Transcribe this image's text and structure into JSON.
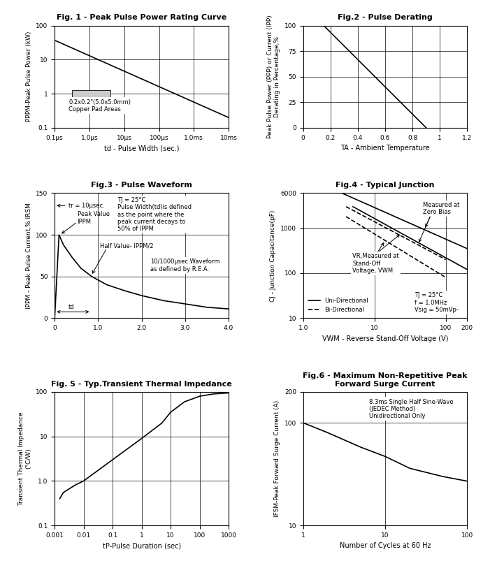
{
  "chart_data": [
    {
      "type": "line",
      "title": "Fig. 1 - Peak Pulse Power Rating Curve",
      "x_label": "td - Pulse Width (sec.)",
      "y_label": "PPPM-Peak Pulse Power (kW)",
      "log": true,
      "grid": true,
      "xlim": [
        1e-07,
        0.01
      ],
      "ylim": [
        0.1,
        100
      ],
      "xticks": [
        {
          "value": 1e-07,
          "label": "0.1µs"
        },
        {
          "value": 1e-06,
          "label": "1.0µs"
        },
        {
          "value": 1e-05,
          "label": "10µs"
        },
        {
          "value": 0.0001,
          "label": "100µs"
        },
        {
          "value": 0.001,
          "label": "1.0ms"
        },
        {
          "value": 0.01,
          "label": "10ms"
        }
      ],
      "yticks": [
        0.1,
        1,
        10,
        100
      ],
      "series": [
        {
          "x": [
            1e-07,
            0.01
          ],
          "values": [
            37,
            0.2
          ],
          "color": "#000000",
          "line_style": "solid"
        }
      ],
      "annotations": [
        {
          "text": "0.2x0.2\"(5.0x5.0mm)\nCopper Pad Areas"
        }
      ]
    },
    {
      "type": "line",
      "title": "Fig.2 - Pulse Derating",
      "x_label": "TA - Ambient Temperature",
      "y_label": "Peak Pulse Power (PPP) or Current (IPP)\nDerating in Percentage,%",
      "grid": true,
      "xlim": [
        0,
        1.2
      ],
      "ylim": [
        0,
        100
      ],
      "xticks": [
        0,
        0.2,
        0.4,
        0.6,
        0.8,
        1,
        1.2
      ],
      "yticks": [
        0,
        25,
        50,
        75,
        100
      ],
      "series": [
        {
          "x": [
            0.15,
            0.9
          ],
          "values": [
            100,
            0
          ],
          "color": "#000000",
          "line_style": "solid"
        }
      ],
      "annotations": []
    },
    {
      "type": "line",
      "title": "Fig.3 - Pulse Waveform",
      "y_label": "IPPM - Peak Pulse Current,% IRSM",
      "grid": true,
      "xlim": [
        0,
        4.0
      ],
      "ylim": [
        0,
        150
      ],
      "xticks": [
        0,
        1.0,
        2.0,
        3.0,
        4.0
      ],
      "yticks": [
        0,
        50,
        100,
        150
      ],
      "series": [
        {
          "x": [
            0,
            0.1,
            0.2,
            0.4,
            0.6,
            0.85,
            1.2,
            1.6,
            2.0,
            2.5,
            3.0,
            3.5,
            4.0
          ],
          "values": [
            0,
            100,
            88,
            73,
            60,
            50,
            40,
            33,
            27,
            21,
            17,
            13,
            11
          ],
          "color": "#000000",
          "line_style": "solid"
        }
      ],
      "annotations": [
        {
          "text": "tr = 10µsec."
        },
        {
          "text": "Peak Value\nIPPM"
        },
        {
          "text": "Half Value- IPPM/2"
        },
        {
          "text": "TJ = 25°C\nPulse Width(td)is defined\nas the point where the\npeak current decays to\n50% of IPPM"
        },
        {
          "text": "10/1000µsec.Waveform\nas defined by R.E.A."
        },
        {
          "text": "td"
        }
      ]
    },
    {
      "type": "line",
      "title": "Fig.4 - Typical Junction",
      "x_label": "VWM - Reverse Stand-Off Voltage (V)",
      "y_label": "CJ - Junction Capacitance(pF)",
      "log": true,
      "grid": true,
      "legend": "lower left",
      "xlim": [
        1,
        200
      ],
      "ylim": [
        10,
        6000
      ],
      "xticks": [
        {
          "value": 1,
          "label": "1.0"
        },
        10,
        100,
        200
      ],
      "yticks": [
        10,
        100,
        1000,
        6000
      ],
      "series": [
        {
          "name": "Uni-Directional",
          "x": [
            3.5,
            200
          ],
          "values": [
            6000,
            350
          ],
          "color": "#000000",
          "line_style": "solid"
        },
        {
          "name": "Uni-Directional",
          "x": [
            5,
            200
          ],
          "values": [
            3000,
            120
          ],
          "color": "#000000",
          "line_style": "solid"
        },
        {
          "name": "Bi-Directional",
          "x": [
            4,
            100
          ],
          "values": [
            3000,
            200
          ],
          "color": "#000000",
          "line_style": "dashed"
        },
        {
          "name": "Bi-Directional",
          "x": [
            4,
            100
          ],
          "values": [
            1800,
            80
          ],
          "color": "#000000",
          "line_style": "dashed"
        }
      ],
      "annotations": [
        {
          "text": "Measured at\nZero Bias"
        },
        {
          "text": "VR,Measured at\nStand-Off\nVoltage, VWM"
        },
        {
          "text": "TJ = 25°C\nf = 1.0MHz\nVsig = 50mVp-"
        }
      ]
    },
    {
      "type": "line",
      "title": "Fig. 5 - Typ.Transient Thermal Impedance",
      "x_label": "tP-Pulse Duration (sec)",
      "y_label": "Transient Thermal Impedance\n(°C/W)",
      "log": true,
      "grid": true,
      "xlim": [
        0.001,
        1000
      ],
      "ylim": [
        0.1,
        100
      ],
      "xticks": [
        0.001,
        0.01,
        0.1,
        1,
        10,
        100,
        1000
      ],
      "yticks": [
        0.1,
        1.0,
        10,
        100
      ],
      "series": [
        {
          "x": [
            0.0015,
            0.002,
            0.005,
            0.01,
            0.1,
            1,
            5,
            10,
            30,
            100,
            300,
            1000
          ],
          "values": [
            0.4,
            0.55,
            0.8,
            1.0,
            3,
            9,
            20,
            35,
            60,
            80,
            90,
            95
          ],
          "color": "#000000",
          "line_style": "solid"
        }
      ],
      "annotations": []
    },
    {
      "type": "line",
      "title": "Fig.6 - Maximum Non-Repetitive Peak\nForward Surge Current",
      "x_label": "Number of Cycles at 60 Hz",
      "y_label": "IFSM-Peak Forward Surge Current (A)",
      "log": true,
      "grid": true,
      "xlim": [
        1,
        100
      ],
      "ylim": [
        10,
        200
      ],
      "xticks": [
        1,
        10,
        100
      ],
      "yticks": [
        10,
        100,
        200
      ],
      "series": [
        {
          "x": [
            1,
            2,
            5,
            10,
            20,
            50,
            100
          ],
          "values": [
            100,
            80,
            58,
            47,
            36,
            30,
            27
          ],
          "color": "#000000",
          "line_style": "solid"
        }
      ],
      "annotations": [
        {
          "text": "8.3ms Single Half Sine-Wave\n(JEDEC Method)\nUnidirectional Only"
        }
      ]
    }
  ]
}
